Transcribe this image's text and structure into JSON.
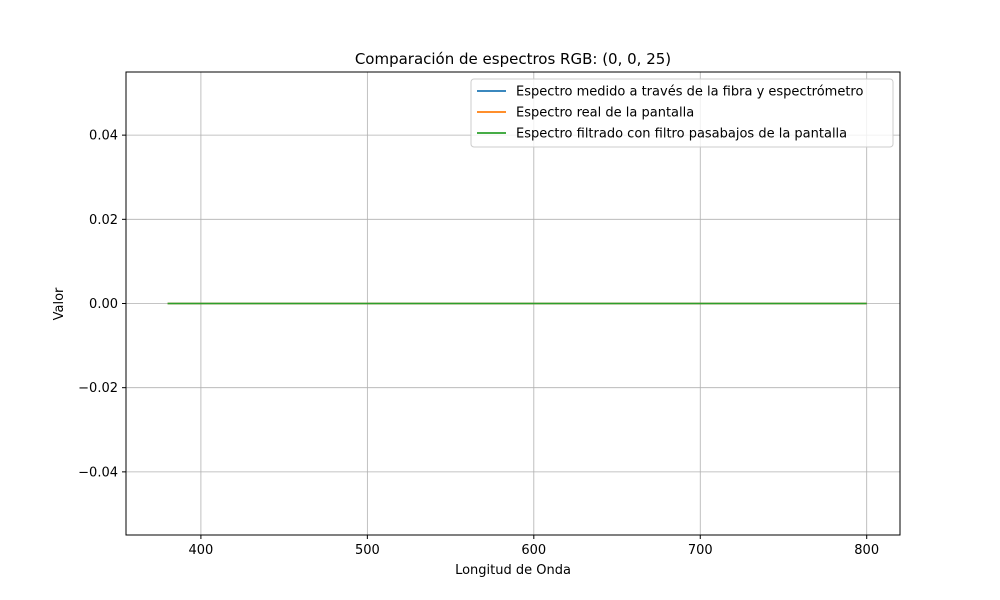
{
  "chart_data": {
    "type": "line",
    "title": "Comparación de espectros RGB: (0, 0, 25)",
    "xlabel": "Longitud de Onda",
    "ylabel": "Valor",
    "xlim": [
      355,
      820
    ],
    "ylim": [
      -0.055,
      0.055
    ],
    "xticks": [
      400,
      500,
      600,
      700,
      800
    ],
    "xtick_labels": [
      "400",
      "500",
      "600",
      "700",
      "800"
    ],
    "yticks": [
      -0.04,
      -0.02,
      0.0,
      0.02,
      0.04
    ],
    "ytick_labels": [
      "−0.04",
      "−0.02",
      "0.00",
      "0.02",
      "0.04"
    ],
    "grid": true,
    "legend_position": "top-right",
    "series": [
      {
        "name": "Espectro medido a través de la fibra y espectrómetro",
        "color": "#1f77b4",
        "x": [
          380,
          800
        ],
        "y": [
          0,
          0
        ]
      },
      {
        "name": "Espectro real de la pantalla",
        "color": "#ff7f0e",
        "x": [
          380,
          800
        ],
        "y": [
          0,
          0
        ]
      },
      {
        "name": "Espectro filtrado con filtro pasabajos de la pantalla",
        "color": "#2ca02c",
        "x": [
          380,
          800
        ],
        "y": [
          0,
          0
        ]
      }
    ]
  }
}
